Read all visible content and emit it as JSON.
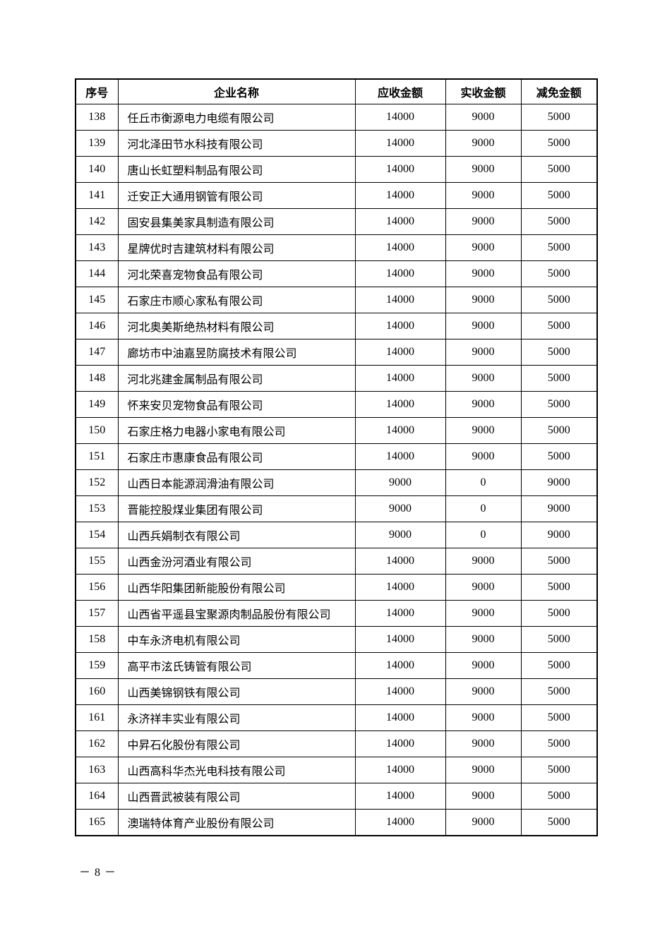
{
  "table": {
    "headers": [
      "序号",
      "企业名称",
      "应收金额",
      "实收金额",
      "减免金额"
    ],
    "rows": [
      {
        "no": "138",
        "name": "任丘市衡源电力电缆有限公司",
        "receivable": "14000",
        "received": "9000",
        "reduction": "5000"
      },
      {
        "no": "139",
        "name": "河北泽田节水科技有限公司",
        "receivable": "14000",
        "received": "9000",
        "reduction": "5000"
      },
      {
        "no": "140",
        "name": "唐山长虹塑料制品有限公司",
        "receivable": "14000",
        "received": "9000",
        "reduction": "5000"
      },
      {
        "no": "141",
        "name": "迁安正大通用钢管有限公司",
        "receivable": "14000",
        "received": "9000",
        "reduction": "5000"
      },
      {
        "no": "142",
        "name": "固安县集美家具制造有限公司",
        "receivable": "14000",
        "received": "9000",
        "reduction": "5000"
      },
      {
        "no": "143",
        "name": "星牌优时吉建筑材料有限公司",
        "receivable": "14000",
        "received": "9000",
        "reduction": "5000"
      },
      {
        "no": "144",
        "name": "河北荣喜宠物食品有限公司",
        "receivable": "14000",
        "received": "9000",
        "reduction": "5000"
      },
      {
        "no": "145",
        "name": "石家庄市顺心家私有限公司",
        "receivable": "14000",
        "received": "9000",
        "reduction": "5000"
      },
      {
        "no": "146",
        "name": "河北奥美斯绝热材料有限公司",
        "receivable": "14000",
        "received": "9000",
        "reduction": "5000"
      },
      {
        "no": "147",
        "name": "廊坊市中油嘉昱防腐技术有限公司",
        "receivable": "14000",
        "received": "9000",
        "reduction": "5000"
      },
      {
        "no": "148",
        "name": "河北兆建金属制品有限公司",
        "receivable": "14000",
        "received": "9000",
        "reduction": "5000"
      },
      {
        "no": "149",
        "name": "怀来安贝宠物食品有限公司",
        "receivable": "14000",
        "received": "9000",
        "reduction": "5000"
      },
      {
        "no": "150",
        "name": "石家庄格力电器小家电有限公司",
        "receivable": "14000",
        "received": "9000",
        "reduction": "5000"
      },
      {
        "no": "151",
        "name": "石家庄市惠康食品有限公司",
        "receivable": "14000",
        "received": "9000",
        "reduction": "5000"
      },
      {
        "no": "152",
        "name": "山西日本能源润滑油有限公司",
        "receivable": "9000",
        "received": "0",
        "reduction": "9000"
      },
      {
        "no": "153",
        "name": "晋能控股煤业集团有限公司",
        "receivable": "9000",
        "received": "0",
        "reduction": "9000"
      },
      {
        "no": "154",
        "name": "山西兵娟制衣有限公司",
        "receivable": "9000",
        "received": "0",
        "reduction": "9000"
      },
      {
        "no": "155",
        "name": "山西金汾河酒业有限公司",
        "receivable": "14000",
        "received": "9000",
        "reduction": "5000"
      },
      {
        "no": "156",
        "name": "山西华阳集团新能股份有限公司",
        "receivable": "14000",
        "received": "9000",
        "reduction": "5000"
      },
      {
        "no": "157",
        "name": "山西省平遥县宝聚源肉制品股份有限公司",
        "receivable": "14000",
        "received": "9000",
        "reduction": "5000"
      },
      {
        "no": "158",
        "name": "中车永济电机有限公司",
        "receivable": "14000",
        "received": "9000",
        "reduction": "5000"
      },
      {
        "no": "159",
        "name": "高平市泫氏铸管有限公司",
        "receivable": "14000",
        "received": "9000",
        "reduction": "5000"
      },
      {
        "no": "160",
        "name": "山西美锦钢铁有限公司",
        "receivable": "14000",
        "received": "9000",
        "reduction": "5000"
      },
      {
        "no": "161",
        "name": "永济祥丰实业有限公司",
        "receivable": "14000",
        "received": "9000",
        "reduction": "5000"
      },
      {
        "no": "162",
        "name": "中昇石化股份有限公司",
        "receivable": "14000",
        "received": "9000",
        "reduction": "5000"
      },
      {
        "no": "163",
        "name": "山西高科华杰光电科技有限公司",
        "receivable": "14000",
        "received": "9000",
        "reduction": "5000"
      },
      {
        "no": "164",
        "name": "山西晋武被装有限公司",
        "receivable": "14000",
        "received": "9000",
        "reduction": "5000"
      },
      {
        "no": "165",
        "name": "澳瑞特体育产业股份有限公司",
        "receivable": "14000",
        "received": "9000",
        "reduction": "5000"
      }
    ]
  },
  "footer": {
    "page_label": "－ 8 －"
  }
}
